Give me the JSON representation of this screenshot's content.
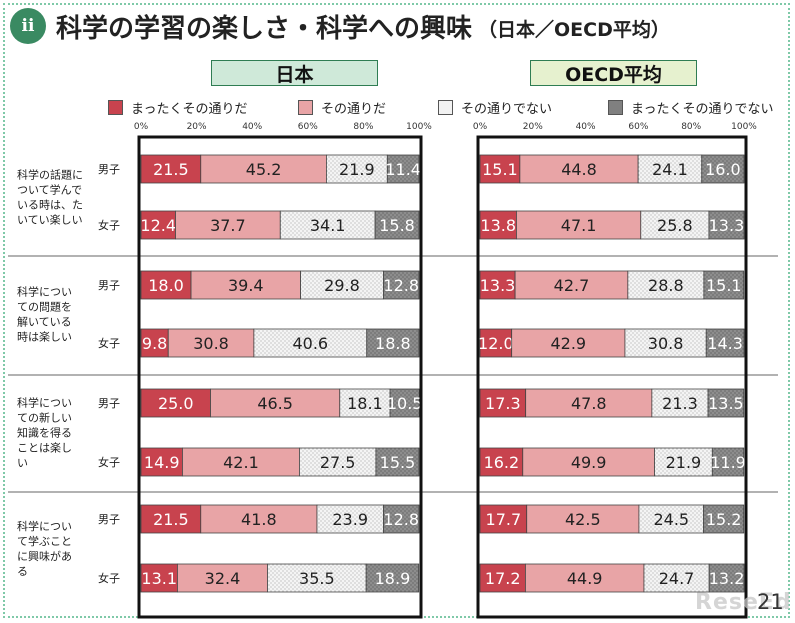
{
  "header": {
    "badge": "ii",
    "title": "科学の学習の楽しさ・科学への興味",
    "subtitle": "（日本／OECD平均）"
  },
  "regions": {
    "japan": "日本",
    "oecd": "OECD平均"
  },
  "legend": [
    {
      "label": "まったくその通りだ",
      "color": "#c8434e"
    },
    {
      "label": "その通りだ",
      "color": "#e8a4a6"
    },
    {
      "label": "その通りでない",
      "color": "#f2f2f2"
    },
    {
      "label": "まったくその通りでない",
      "color": "#808080"
    }
  ],
  "axis_ticks": [
    "0%",
    "20%",
    "40%",
    "60%",
    "80%",
    "100%"
  ],
  "chart_data": {
    "type": "bar",
    "stacked": true,
    "orientation": "horizontal",
    "xlim": [
      0,
      100
    ],
    "questions": [
      {
        "label": "科学の話題について学んでいる時は、たいてい楽しい",
        "japan": [
          {
            "gender": "男子",
            "values": [
              21.5,
              45.2,
              21.9,
              11.4
            ]
          },
          {
            "gender": "女子",
            "values": [
              12.4,
              37.7,
              34.1,
              15.8
            ]
          }
        ],
        "oecd": [
          {
            "gender": "男子",
            "values": [
              15.1,
              44.8,
              24.1,
              16.0
            ]
          },
          {
            "gender": "女子",
            "values": [
              13.8,
              47.1,
              25.8,
              13.3
            ]
          }
        ]
      },
      {
        "label": "科学についての問題を解いている時は楽しい",
        "japan": [
          {
            "gender": "男子",
            "values": [
              18.0,
              39.4,
              29.8,
              12.8
            ]
          },
          {
            "gender": "女子",
            "values": [
              9.8,
              30.8,
              40.6,
              18.8
            ]
          }
        ],
        "oecd": [
          {
            "gender": "男子",
            "values": [
              13.3,
              42.7,
              28.8,
              15.1
            ]
          },
          {
            "gender": "女子",
            "values": [
              12.0,
              42.9,
              30.8,
              14.3
            ]
          }
        ]
      },
      {
        "label": "科学についての新しい知識を得ることは楽しい",
        "japan": [
          {
            "gender": "男子",
            "values": [
              25.0,
              46.5,
              18.1,
              10.5
            ]
          },
          {
            "gender": "女子",
            "values": [
              14.9,
              42.1,
              27.5,
              15.5
            ]
          }
        ],
        "oecd": [
          {
            "gender": "男子",
            "values": [
              17.3,
              47.8,
              21.3,
              13.5
            ]
          },
          {
            "gender": "女子",
            "values": [
              16.2,
              49.9,
              21.9,
              11.9
            ]
          }
        ]
      },
      {
        "label": "科学について学ぶことに興味がある",
        "japan": [
          {
            "gender": "男子",
            "values": [
              21.5,
              41.8,
              23.9,
              12.8
            ]
          },
          {
            "gender": "女子",
            "values": [
              13.1,
              32.4,
              35.5,
              18.9
            ]
          }
        ],
        "oecd": [
          {
            "gender": "男子",
            "values": [
              17.7,
              42.5,
              24.5,
              15.2
            ]
          },
          {
            "gender": "女子",
            "values": [
              17.2,
              44.9,
              24.7,
              13.2
            ]
          }
        ]
      }
    ]
  },
  "page_number": "21",
  "watermark": "ReseEd"
}
